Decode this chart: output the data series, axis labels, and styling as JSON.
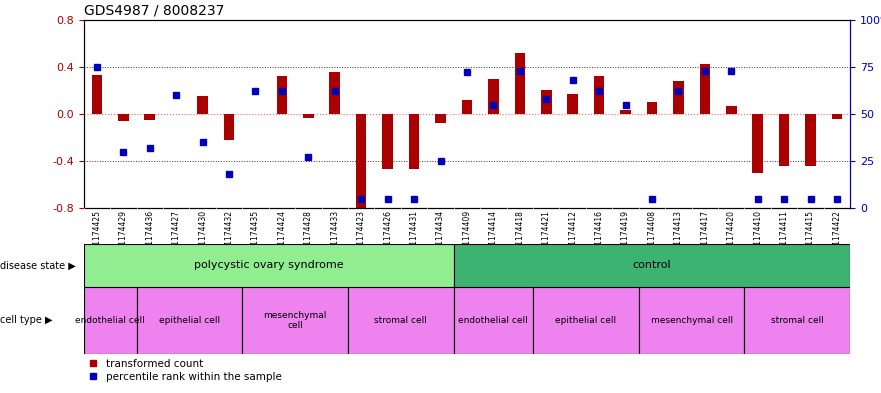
{
  "title": "GDS4987 / 8008237",
  "samples": [
    "GSM1174425",
    "GSM1174429",
    "GSM1174436",
    "GSM1174427",
    "GSM1174430",
    "GSM1174432",
    "GSM1174435",
    "GSM1174424",
    "GSM1174428",
    "GSM1174433",
    "GSM1174423",
    "GSM1174426",
    "GSM1174431",
    "GSM1174434",
    "GSM1174409",
    "GSM1174414",
    "GSM1174418",
    "GSM1174421",
    "GSM1174412",
    "GSM1174416",
    "GSM1174419",
    "GSM1174408",
    "GSM1174413",
    "GSM1174417",
    "GSM1174420",
    "GSM1174410",
    "GSM1174411",
    "GSM1174415",
    "GSM1174422"
  ],
  "bar_values": [
    0.33,
    -0.06,
    -0.05,
    0.0,
    0.15,
    -0.22,
    0.0,
    0.32,
    -0.03,
    0.36,
    -0.8,
    -0.47,
    -0.47,
    -0.08,
    0.12,
    0.3,
    0.52,
    0.2,
    0.17,
    0.32,
    0.03,
    0.1,
    0.28,
    0.42,
    0.07,
    -0.5,
    -0.44,
    -0.44,
    -0.04
  ],
  "dot_pct": [
    75,
    30,
    32,
    60,
    35,
    18,
    62,
    62,
    27,
    62,
    5,
    5,
    5,
    25,
    72,
    55,
    73,
    58,
    68,
    62,
    55,
    5,
    62,
    73,
    73,
    5,
    5,
    5,
    5
  ],
  "disease_state_groups": [
    {
      "label": "polycystic ovary syndrome",
      "start": 0,
      "end": 14,
      "color": "#90ee90"
    },
    {
      "label": "control",
      "start": 14,
      "end": 29,
      "color": "#3cb371"
    }
  ],
  "cell_type_groups": [
    {
      "label": "endothelial cell",
      "start": 0,
      "end": 2,
      "color": "#ee82ee"
    },
    {
      "label": "epithelial cell",
      "start": 2,
      "end": 6,
      "color": "#ee82ee"
    },
    {
      "label": "mesenchymal\ncell",
      "start": 6,
      "end": 10,
      "color": "#ee82ee"
    },
    {
      "label": "stromal cell",
      "start": 10,
      "end": 14,
      "color": "#ee82ee"
    },
    {
      "label": "endothelial cell",
      "start": 14,
      "end": 17,
      "color": "#ee82ee"
    },
    {
      "label": "epithelial cell",
      "start": 17,
      "end": 21,
      "color": "#ee82ee"
    },
    {
      "label": "mesenchymal cell",
      "start": 21,
      "end": 25,
      "color": "#ee82ee"
    },
    {
      "label": "stromal cell",
      "start": 25,
      "end": 29,
      "color": "#ee82ee"
    }
  ],
  "ylim": [
    -0.8,
    0.8
  ],
  "yticks_left": [
    -0.8,
    -0.4,
    0.0,
    0.4,
    0.8
  ],
  "yticks_right": [
    0,
    25,
    50,
    75,
    100
  ],
  "ytick_right_labels": [
    "0",
    "25",
    "50",
    "75",
    "100%"
  ],
  "bar_color": "#aa0000",
  "dot_color": "#0000bb",
  "zero_line_color": "#ff6666",
  "dotted_line_color": "#333333",
  "tick_label_bg": "#cccccc",
  "background_color": "#ffffff",
  "bar_width": 0.4
}
